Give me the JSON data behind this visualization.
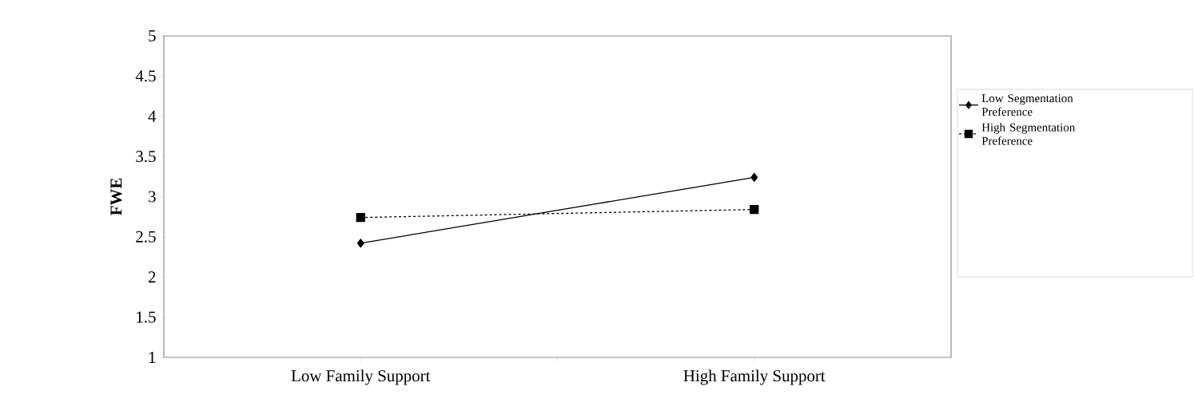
{
  "chart_data": {
    "type": "line",
    "ylabel": "FWE",
    "categories": [
      "Low Family Support",
      "High Family Support"
    ],
    "series": [
      {
        "name": "Low Segmentation Preference",
        "color": "#000000",
        "marker": "diamond",
        "line_style": "solid",
        "values": [
          2.42,
          3.24
        ]
      },
      {
        "name": "High Segmentation Preference",
        "color": "#000000",
        "marker": "square",
        "line_style": "dashed",
        "values": [
          2.74,
          2.84
        ]
      }
    ],
    "ylim": [
      1,
      5
    ],
    "yticks": [
      1,
      1.5,
      2,
      2.5,
      3,
      3.5,
      4,
      4.5,
      5
    ],
    "grid": false,
    "legend": "right"
  }
}
